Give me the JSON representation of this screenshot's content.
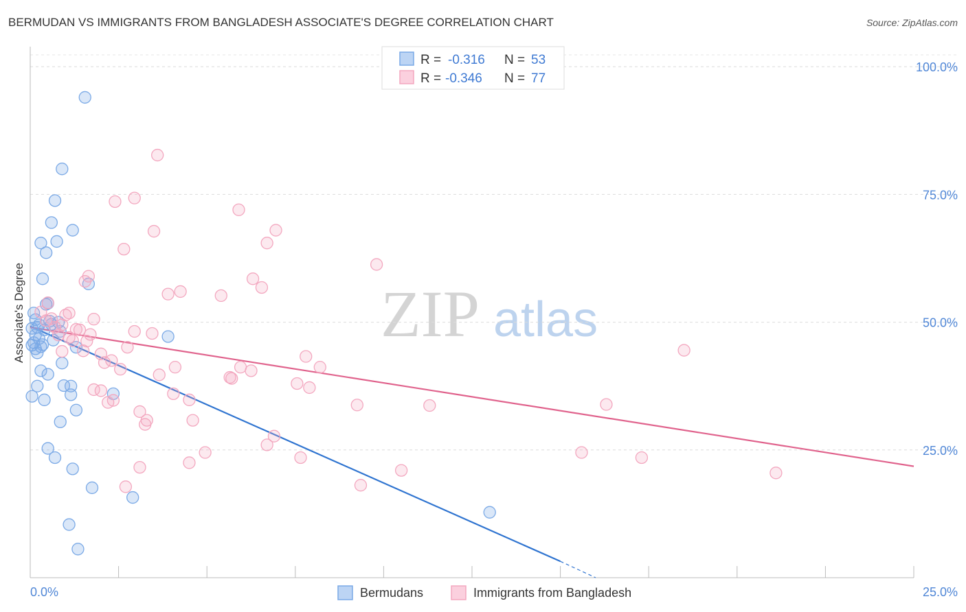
{
  "chart_data": {
    "type": "scatter",
    "title": "BERMUDAN VS IMMIGRANTS FROM BANGLADESH ASSOCIATE'S DEGREE CORRELATION CHART",
    "source": "Source: ZipAtlas.com",
    "ylabel": "Associate's Degree",
    "xlabel": "",
    "xlim": [
      0,
      25
    ],
    "ylim": [
      0,
      105
    ],
    "x_tick_labels": [
      "0.0%",
      "25.0%"
    ],
    "y_ticks": [
      25,
      50,
      75,
      100
    ],
    "y_tick_labels": [
      "25.0%",
      "50.0%",
      "75.0%",
      "100.0%"
    ],
    "grid": true,
    "watermark": {
      "zip": "ZIP",
      "atlas": "atlas"
    },
    "legend": {
      "position": "top-center",
      "entries": [
        {
          "r_label": "R =",
          "r_value": "-0.316",
          "n_label": "N =",
          "n_value": "53"
        },
        {
          "r_label": "R =",
          "r_value": "-0.346",
          "n_label": "N =",
          "n_value": "77"
        }
      ]
    },
    "series": [
      {
        "name": "Bermudans",
        "color": "#7aa9e6",
        "line_color": "#2f74d0",
        "trend": {
          "x": [
            0,
            15
          ],
          "y": [
            49.2,
            3.2
          ],
          "dash_to": [
            16.0,
            0.0
          ]
        },
        "points": [
          [
            1.55,
            94.0
          ],
          [
            0.9,
            80.0
          ],
          [
            0.7,
            73.8
          ],
          [
            0.6,
            69.5
          ],
          [
            0.3,
            65.5
          ],
          [
            0.45,
            63.6
          ],
          [
            0.75,
            65.8
          ],
          [
            1.2,
            68.0
          ],
          [
            0.35,
            58.5
          ],
          [
            1.65,
            57.5
          ],
          [
            0.1,
            51.8
          ],
          [
            0.45,
            53.5
          ],
          [
            0.5,
            53.7
          ],
          [
            0.2,
            49.0
          ],
          [
            0.4,
            48.5
          ],
          [
            0.15,
            47.5
          ],
          [
            0.25,
            46.8
          ],
          [
            0.05,
            45.5
          ],
          [
            0.15,
            44.8
          ],
          [
            0.3,
            45.2
          ],
          [
            0.6,
            49.6
          ],
          [
            0.85,
            48.2
          ],
          [
            0.05,
            48.8
          ],
          [
            0.1,
            46.0
          ],
          [
            0.2,
            44.0
          ],
          [
            0.9,
            42.0
          ],
          [
            0.3,
            40.5
          ],
          [
            1.3,
            45.1
          ],
          [
            1.15,
            37.5
          ],
          [
            0.5,
            39.8
          ],
          [
            0.2,
            37.5
          ],
          [
            0.95,
            37.6
          ],
          [
            1.15,
            35.8
          ],
          [
            0.05,
            35.5
          ],
          [
            0.4,
            34.8
          ],
          [
            1.3,
            32.8
          ],
          [
            2.35,
            36.0
          ],
          [
            0.85,
            30.5
          ],
          [
            0.5,
            25.3
          ],
          [
            0.7,
            23.5
          ],
          [
            1.2,
            21.3
          ],
          [
            1.75,
            17.6
          ],
          [
            2.9,
            15.7
          ],
          [
            1.1,
            10.4
          ],
          [
            1.35,
            5.6
          ],
          [
            3.9,
            47.2
          ],
          [
            13.0,
            12.8
          ],
          [
            0.55,
            50.2
          ],
          [
            0.35,
            45.6
          ],
          [
            0.25,
            49.5
          ],
          [
            0.8,
            50.0
          ],
          [
            0.15,
            50.5
          ],
          [
            0.65,
            46.5
          ]
        ]
      },
      {
        "name": "Immigrants from Bangladesh",
        "color": "#f3a7bf",
        "line_color": "#e0628c",
        "trend": {
          "x": [
            0,
            25
          ],
          "y": [
            49.0,
            21.8
          ]
        },
        "points": [
          [
            3.6,
            82.7
          ],
          [
            2.95,
            74.3
          ],
          [
            2.4,
            73.6
          ],
          [
            5.9,
            72.0
          ],
          [
            3.5,
            67.8
          ],
          [
            6.95,
            68.0
          ],
          [
            6.7,
            65.5
          ],
          [
            2.65,
            64.3
          ],
          [
            9.8,
            61.3
          ],
          [
            1.65,
            59.0
          ],
          [
            1.55,
            58.0
          ],
          [
            6.3,
            58.5
          ],
          [
            6.55,
            56.8
          ],
          [
            3.9,
            55.5
          ],
          [
            4.25,
            56.0
          ],
          [
            5.4,
            55.2
          ],
          [
            0.5,
            53.8
          ],
          [
            1.1,
            51.8
          ],
          [
            0.6,
            50.7
          ],
          [
            1.8,
            50.6
          ],
          [
            0.9,
            49.5
          ],
          [
            1.4,
            48.5
          ],
          [
            1.1,
            47.0
          ],
          [
            1.6,
            46.3
          ],
          [
            0.3,
            52.0
          ],
          [
            0.8,
            47.5
          ],
          [
            2.95,
            48.2
          ],
          [
            3.45,
            47.8
          ],
          [
            1.5,
            44.4
          ],
          [
            2.0,
            43.8
          ],
          [
            2.75,
            45.1
          ],
          [
            7.8,
            43.3
          ],
          [
            2.1,
            42.1
          ],
          [
            4.1,
            41.2
          ],
          [
            5.95,
            41.2
          ],
          [
            8.2,
            41.2
          ],
          [
            6.25,
            40.5
          ],
          [
            2.55,
            40.8
          ],
          [
            3.65,
            39.7
          ],
          [
            5.65,
            39.2
          ],
          [
            5.7,
            39.0
          ],
          [
            7.55,
            38.0
          ],
          [
            7.9,
            37.2
          ],
          [
            1.8,
            36.8
          ],
          [
            2.0,
            36.6
          ],
          [
            4.05,
            36.0
          ],
          [
            2.2,
            34.3
          ],
          [
            4.5,
            34.8
          ],
          [
            2.35,
            34.7
          ],
          [
            9.25,
            33.8
          ],
          [
            11.3,
            33.7
          ],
          [
            16.3,
            33.9
          ],
          [
            3.1,
            32.5
          ],
          [
            3.3,
            30.8
          ],
          [
            4.6,
            30.8
          ],
          [
            3.25,
            30.0
          ],
          [
            6.9,
            27.7
          ],
          [
            6.7,
            26.0
          ],
          [
            4.95,
            24.5
          ],
          [
            7.65,
            23.5
          ],
          [
            4.5,
            22.5
          ],
          [
            3.1,
            21.6
          ],
          [
            15.6,
            24.5
          ],
          [
            17.3,
            23.5
          ],
          [
            10.5,
            21.0
          ],
          [
            9.35,
            18.1
          ],
          [
            2.7,
            17.8
          ],
          [
            21.1,
            20.5
          ],
          [
            18.5,
            44.5
          ],
          [
            0.9,
            44.3
          ],
          [
            1.3,
            48.6
          ],
          [
            1.0,
            51.4
          ],
          [
            2.3,
            42.5
          ],
          [
            0.45,
            50.3
          ],
          [
            1.7,
            47.6
          ],
          [
            0.7,
            49.0
          ],
          [
            1.2,
            46.4
          ]
        ]
      }
    ]
  }
}
